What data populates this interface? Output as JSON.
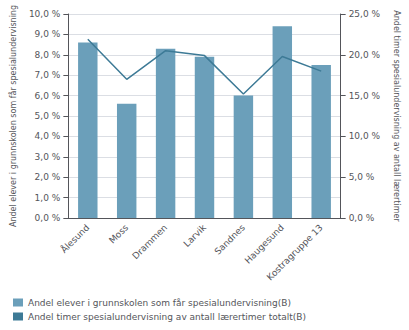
{
  "chart_data": {
    "type": "bar",
    "categories": [
      "Ålesund",
      "Moss",
      "Drammen",
      "Larvik",
      "Sandnes",
      "Haugesund",
      "Kostragruppe 13"
    ],
    "series": [
      {
        "name": "Andel elever i grunnskolen som får spesialundervisning(B)",
        "type": "bar",
        "color": "#6b9fba",
        "values": [
          8.6,
          5.6,
          8.3,
          7.9,
          6.0,
          9.4,
          7.5
        ]
      },
      {
        "name": "Andel timer spesialundervisning av antall lærertimer totalt(B)",
        "type": "line",
        "color": "#3d7a96",
        "axis": "y2",
        "values": [
          21.9,
          17.0,
          20.5,
          19.9,
          15.2,
          19.8,
          18.0
        ]
      }
    ],
    "ylabel": "Andel elever i grunnskolen som får spesialundervisning",
    "y2label": "Andel timer spesialundervisning av antall lærertimer",
    "ylim": [
      0,
      10.0
    ],
    "yticks": [
      {
        "value": 0.0,
        "label": "0,0 %"
      },
      {
        "value": 1.0,
        "label": "1,0 %"
      },
      {
        "value": 2.0,
        "label": "2,0 %"
      },
      {
        "value": 3.0,
        "label": "3,0 %"
      },
      {
        "value": 4.0,
        "label": "4,0 %"
      },
      {
        "value": 5.0,
        "label": "5,0 %"
      },
      {
        "value": 6.0,
        "label": "6,0 %"
      },
      {
        "value": 7.0,
        "label": "7,0 %"
      },
      {
        "value": 8.0,
        "label": "8,0 %"
      },
      {
        "value": 9.0,
        "label": "9,0 %"
      },
      {
        "value": 10.0,
        "label": "10,0 %"
      }
    ],
    "y2lim": [
      0,
      25.0
    ],
    "y2ticks": [
      {
        "value": 0.0,
        "label": "0,0 %"
      },
      {
        "value": 5.0,
        "label": "5,0 %"
      },
      {
        "value": 10.0,
        "label": "10,0 %"
      },
      {
        "value": 15.0,
        "label": "15,0 %"
      },
      {
        "value": 20.0,
        "label": "20,0 %"
      },
      {
        "value": 25.0,
        "label": "25,0 %"
      }
    ],
    "grid": true,
    "legend": "lower left"
  }
}
